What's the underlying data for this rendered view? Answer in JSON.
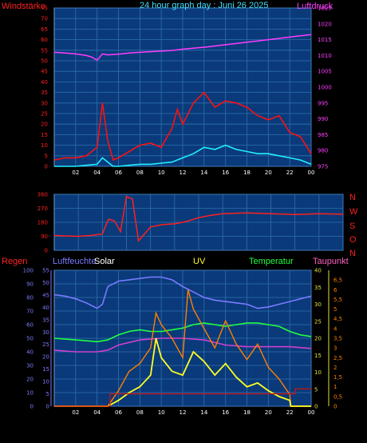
{
  "header": {
    "left_label": "Windstärke",
    "title": "24 hour graph day : Juni 26 2025",
    "right_label": "Luftdruck"
  },
  "compass": [
    "N",
    "W",
    "S",
    "O",
    "N"
  ],
  "lower_labels": {
    "regen": "Regen",
    "luftfeuchte": "Luftfeuchte",
    "solar": "Solar",
    "uv": "UV",
    "temperatur": "Temperatur",
    "taupunkt": "Taupunkt"
  },
  "colors": {
    "panel_bg": "#0a3a7a",
    "grid": "#2f6fb0",
    "wind_left": "#ff2020",
    "title": "#40e0ff",
    "pressure": "#ff3cff",
    "gust": "#ff1010",
    "wind_avg": "#20f0ff",
    "direction": "#ff2020",
    "humidity": "#7a7aff",
    "temperature": "#20ff40",
    "dewpoint": "#d040d0",
    "solar": "#ff7f00",
    "uv": "#ffff20",
    "rain": "#d01010",
    "temp_axis": "#e0e040",
    "taupunkt_label": "#ff60c0"
  },
  "chart_data": [
    {
      "type": "line",
      "name": "wind-pressure",
      "x_ticks": [
        "02",
        "04",
        "06",
        "08",
        "10",
        "12",
        "14",
        "16",
        "18",
        "20",
        "22",
        "00"
      ],
      "left_axis": {
        "label": "Windstärke",
        "ticks": [
          0,
          5,
          10,
          15,
          20,
          25,
          30,
          35,
          40,
          45,
          50,
          55,
          60,
          65,
          70,
          75
        ],
        "ylim": [
          0,
          75
        ]
      },
      "right_axis": {
        "label": "Luftdruck",
        "ticks": [
          975,
          980,
          985,
          990,
          995,
          1000,
          1005,
          1010,
          1015,
          1020,
          1025
        ],
        "ylim": [
          975,
          1025
        ]
      },
      "series": [
        {
          "axis": "right",
          "x": [
            0,
            1,
            2,
            3,
            3.5,
            4,
            4.5,
            5,
            6,
            7,
            8,
            9,
            10,
            11,
            12,
            13,
            14,
            15,
            16,
            17,
            18,
            19,
            20,
            21,
            22,
            23,
            24
          ],
          "values": [
            1011,
            1010.8,
            1010.5,
            1010,
            1009.5,
            1008.5,
            1010.5,
            1010.2,
            1010.4,
            1010.8,
            1011,
            1011.2,
            1011.4,
            1011.6,
            1012,
            1012.3,
            1012.6,
            1013,
            1013.4,
            1013.8,
            1014.2,
            1014.6,
            1015,
            1015.4,
            1015.8,
            1016.2,
            1016.6
          ]
        },
        {
          "axis": "left",
          "x": [
            0,
            1,
            2,
            3,
            4,
            4.5,
            5,
            5.5,
            6,
            7,
            8,
            9,
            10,
            11,
            11.5,
            12,
            13,
            14,
            15,
            16,
            17,
            18,
            19,
            20,
            21,
            22,
            23,
            24
          ],
          "values": [
            3,
            4,
            4,
            5,
            9,
            30,
            12,
            3,
            4,
            7,
            10,
            11,
            9,
            18,
            27,
            20,
            30,
            35,
            28,
            31,
            30,
            28,
            24,
            22,
            24,
            16,
            14,
            6
          ]
        },
        {
          "axis": "left",
          "x": [
            0,
            1,
            2,
            3,
            4,
            4.5,
            5,
            5.5,
            6,
            7,
            8,
            9,
            10,
            11,
            12,
            13,
            14,
            15,
            16,
            17,
            18,
            19,
            20,
            21,
            22,
            23,
            24
          ],
          "values": [
            0,
            0,
            0,
            0.5,
            1,
            4,
            2,
            0,
            0,
            0.5,
            1,
            1,
            1.5,
            2,
            4,
            6,
            9,
            8,
            10,
            8,
            7,
            6,
            6,
            5,
            4,
            3,
            1
          ]
        }
      ]
    },
    {
      "type": "line",
      "name": "wind-direction",
      "x_ticks": [
        "02",
        "04",
        "06",
        "08",
        "10",
        "12",
        "14",
        "16",
        "18",
        "20",
        "22",
        "00"
      ],
      "left_axis": {
        "ticks": [
          0,
          90,
          180,
          270,
          360
        ],
        "ylim": [
          0,
          360
        ]
      },
      "series": [
        {
          "x": [
            0,
            1,
            2,
            3,
            4,
            4.5,
            5,
            5.5,
            6,
            6.5,
            7,
            8,
            9,
            10,
            11,
            12,
            13,
            14,
            16,
            18,
            20,
            22,
            24
          ],
          "values": [
            95,
            92,
            90,
            95,
            105,
            200,
            190,
            120,
            345,
            330,
            60,
            150,
            165,
            170,
            185,
            210,
            225,
            235,
            240,
            235,
            230,
            235,
            232
          ]
        }
      ]
    },
    {
      "type": "line",
      "name": "weather",
      "x_ticks": [
        "02",
        "04",
        "06",
        "08",
        "10",
        "12",
        "14",
        "16",
        "18",
        "20",
        "22",
        "00"
      ],
      "axes": {
        "humidity": {
          "ticks": [
            0,
            10,
            20,
            30,
            40,
            50,
            60,
            70,
            80,
            90,
            100
          ],
          "ylim": [
            0,
            100
          ]
        },
        "rain": {
          "ticks": [
            0,
            5,
            10,
            15,
            20,
            25,
            30,
            35,
            40,
            45,
            50,
            55
          ],
          "ylim": [
            0,
            55
          ]
        },
        "temperature": {
          "ticks": [
            0,
            5,
            10,
            15,
            20,
            25,
            30,
            35,
            40
          ],
          "ylim": [
            0,
            40
          ]
        },
        "uv": {
          "ticks": [
            "0",
            "0,5",
            "1",
            "1,5",
            "2",
            "2,5",
            "3",
            "3,5",
            "4",
            "4,5",
            "5",
            "5,5",
            "6",
            "6,5"
          ],
          "ylim": [
            0,
            7
          ]
        }
      },
      "series": [
        {
          "axis": "humidity",
          "x": [
            0,
            1,
            2,
            3,
            4,
            4.5,
            5,
            6,
            7,
            8,
            9,
            10,
            11,
            12,
            13,
            14,
            15,
            16,
            17,
            18,
            19,
            20,
            21,
            22,
            23,
            24
          ],
          "values": [
            82,
            81,
            79,
            76,
            72,
            75,
            88,
            92,
            93,
            94,
            95,
            95,
            93,
            88,
            84,
            80,
            78,
            77,
            76,
            75,
            72,
            73,
            75,
            77,
            79,
            81
          ]
        },
        {
          "axis": "temperature",
          "x": [
            0,
            2,
            4,
            5,
            6,
            7,
            8,
            9,
            10,
            11,
            12,
            13,
            14,
            15,
            16,
            17,
            18,
            19,
            20,
            21,
            22,
            23,
            24
          ],
          "values": [
            20,
            19.5,
            19,
            19.5,
            21,
            22,
            22.5,
            22,
            22,
            22.5,
            23,
            24,
            24.5,
            24,
            23.5,
            24,
            24.5,
            24.5,
            24,
            23.5,
            22,
            21,
            20.5
          ]
        },
        {
          "axis": "temperature",
          "x": [
            0,
            2,
            4,
            5,
            6,
            8,
            10,
            12,
            14,
            16,
            18,
            20,
            22,
            24
          ],
          "values": [
            16.5,
            16,
            16,
            16.5,
            18,
            19.5,
            20,
            20,
            19.5,
            18,
            17.5,
            17.5,
            17.5,
            17
          ]
        },
        {
          "axis": "solar",
          "x": [
            0,
            5,
            5.5,
            6,
            7,
            8,
            9,
            9.5,
            10,
            11,
            12,
            12.5,
            13,
            14,
            15,
            16,
            17,
            18,
            19,
            20,
            21,
            22,
            22.1,
            24
          ],
          "values": [
            0,
            0,
            4,
            8,
            18,
            22,
            30,
            48,
            42,
            35,
            25,
            60,
            50,
            40,
            30,
            44,
            32,
            24,
            32,
            20,
            14,
            6,
            0,
            0
          ]
        },
        {
          "axis": "uv",
          "x": [
            0,
            5,
            6,
            7,
            8,
            9,
            9.5,
            10,
            11,
            12,
            13,
            14,
            15,
            16,
            17,
            18,
            19,
            20,
            21,
            22,
            22.1,
            24
          ],
          "values": [
            0,
            0,
            0.3,
            0.7,
            1,
            1.6,
            3.5,
            2.5,
            1.8,
            1.6,
            2.8,
            2.3,
            1.6,
            2.2,
            1.5,
            1,
            1.2,
            0.8,
            0.5,
            0.3,
            0,
            0
          ]
        },
        {
          "axis": "rain",
          "x": [
            0,
            5.2,
            5.2,
            22.5,
            22.5,
            24
          ],
          "values": [
            0,
            0,
            5,
            5,
            7,
            7
          ]
        }
      ]
    }
  ]
}
